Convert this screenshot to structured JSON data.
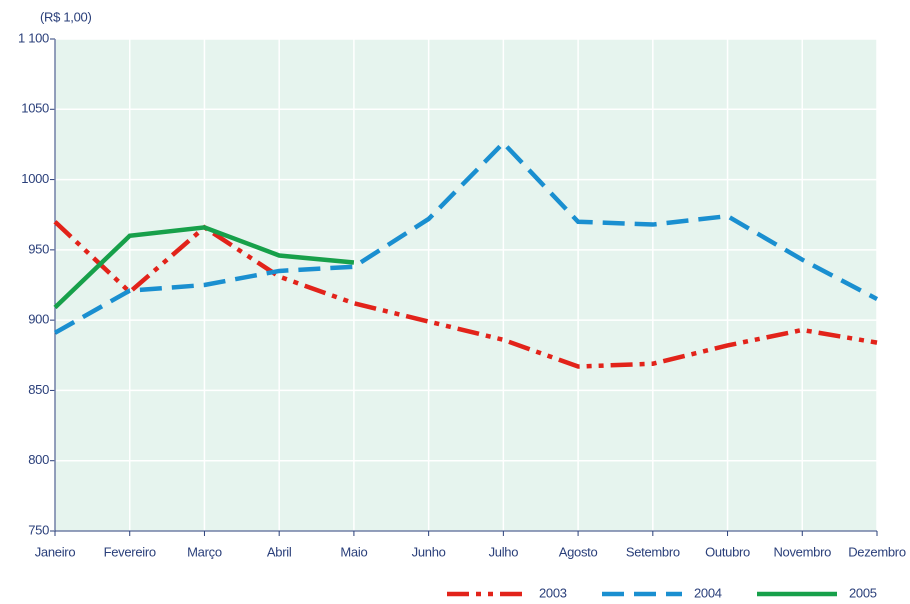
{
  "chart_data": {
    "type": "line",
    "y_label": "(R$ 1,00)",
    "categories": [
      "Janeiro",
      "Fevereiro",
      "Março",
      "Abril",
      "Maio",
      "Junho",
      "Julho",
      "Agosto",
      "Setembro",
      "Outubro",
      "Novembro",
      "Dezembro"
    ],
    "series": [
      {
        "name": "2003",
        "color": "#e2231a",
        "style": "dashdotdot",
        "values": [
          970,
          920,
          966,
          931,
          912,
          899,
          886,
          867,
          869,
          882,
          893,
          884
        ]
      },
      {
        "name": "2004",
        "color": "#1a8fd0",
        "style": "dashed",
        "values": [
          891,
          921,
          925,
          935,
          938,
          972,
          1026,
          970,
          968,
          974,
          943,
          915
        ]
      },
      {
        "name": "2005",
        "color": "#17a04a",
        "style": "solid",
        "values": [
          909,
          960,
          966,
          946,
          941,
          null,
          null,
          null,
          null,
          null,
          null,
          null
        ]
      }
    ],
    "ylim": [
      750,
      1100
    ],
    "yticks": [
      750,
      800,
      850,
      900,
      950,
      1000,
      1050,
      {
        "value": 1100,
        "label": "1 100"
      }
    ],
    "grid": true,
    "plot_background": "#e6f4ee",
    "legend": "bottom-right"
  }
}
